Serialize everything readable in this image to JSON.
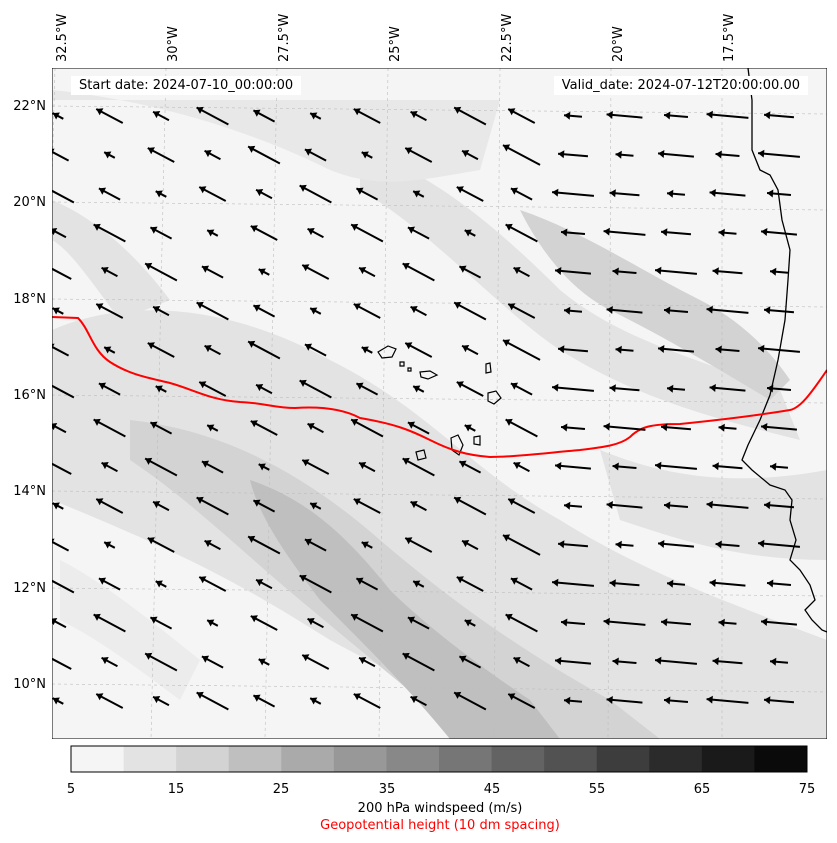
{
  "map": {
    "longitude_labels": [
      "32.5°W",
      "30°W",
      "27.5°W",
      "25°W",
      "22.5°W",
      "20°W",
      "17.5°W"
    ],
    "latitude_labels": [
      "22°N",
      "20°N",
      "18°N",
      "16°N",
      "14°N",
      "12°N",
      "10°N"
    ],
    "start_date": "Start date: 2024-07-10_00:00:00",
    "valid_date": "Valid_date: 2024-07-12T20:00:00.00",
    "contour_color": "#ff0000",
    "coastline_color": "#000000",
    "wind_arrow_color": "#000000",
    "wind_direction": "from east-southeast (arrows point west-northwest)",
    "gridlines": true
  },
  "colorbar": {
    "ticks": [
      "5",
      "15",
      "25",
      "35",
      "45",
      "55",
      "65",
      "75"
    ],
    "colors": [
      "#f5f5f5",
      "#e3e3e3",
      "#d3d3d3",
      "#bfbfbf",
      "#aaaaaa",
      "#989898",
      "#888888",
      "#767676",
      "#636363",
      "#525252",
      "#3d3d3d",
      "#2b2b2b",
      "#1a1a1a",
      "#0a0a0a"
    ],
    "label": "200 hPa windspeed (m/s)",
    "sublabel": "Geopotential height (10 dm spacing)",
    "sublabel_color": "#ff0000"
  }
}
